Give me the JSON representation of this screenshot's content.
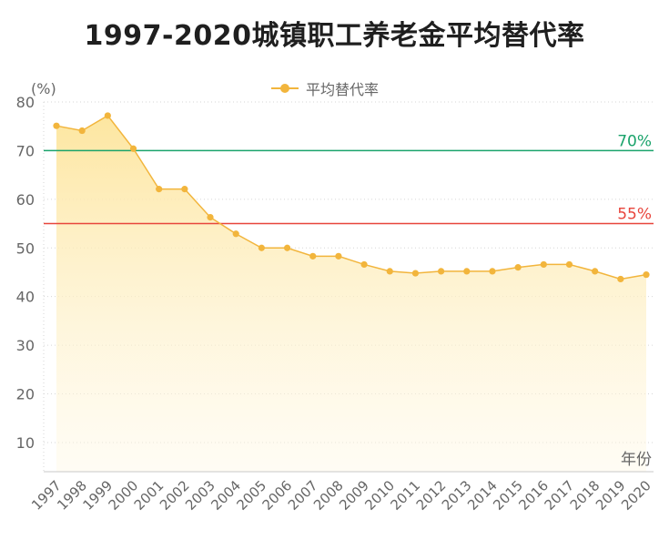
{
  "title": "1997-2020城镇职工养老金平均替代率",
  "legend": {
    "label": "平均替代率"
  },
  "colors": {
    "series": "#f2b53c",
    "ref70": "#1aa36b",
    "ref55": "#e8453c",
    "axis": "#c8c8c8",
    "text": "#666666"
  },
  "chart_data": {
    "type": "area",
    "title": "1997-2020城镇职工养老金平均替代率",
    "ylabel": "(%)",
    "xlabel": "年份",
    "ylim": [
      4,
      80
    ],
    "yticks": [
      10,
      20,
      30,
      40,
      50,
      60,
      70,
      80
    ],
    "grid": true,
    "legend_position": "top-center",
    "categories": [
      "1997",
      "1998",
      "1999",
      "2000",
      "2001",
      "2002",
      "2003",
      "2004",
      "2005",
      "2006",
      "2007",
      "2008",
      "2009",
      "2010",
      "2011",
      "2012",
      "2013",
      "2014",
      "2015",
      "2016",
      "2017",
      "2018",
      "2019",
      "2020"
    ],
    "series": [
      {
        "name": "平均替代率",
        "values": [
          75.1,
          74.1,
          77.2,
          70.4,
          62.1,
          62.1,
          56.3,
          52.9,
          50.0,
          50.0,
          48.3,
          48.3,
          46.6,
          45.2,
          44.8,
          45.2,
          45.2,
          45.2,
          46.0,
          46.6,
          46.6,
          45.2,
          43.6,
          44.5
        ]
      }
    ],
    "reference_lines": [
      {
        "label": "70%",
        "value": 70
      },
      {
        "label": "55%",
        "value": 55
      }
    ]
  }
}
